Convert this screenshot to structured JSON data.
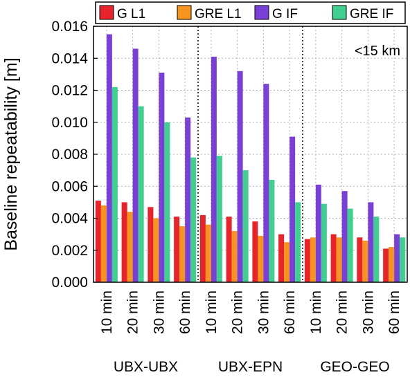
{
  "chart_data": {
    "type": "bar",
    "ylabel": "Baseline repeatability [m]",
    "annotation": "<15 km",
    "ylim": [
      0,
      0.016
    ],
    "yticks": [
      "0.000",
      "0.002",
      "0.004",
      "0.006",
      "0.008",
      "0.010",
      "0.012",
      "0.014",
      "0.016"
    ],
    "grid": true,
    "legend_position": "top",
    "groups": [
      "UBX-UBX",
      "UBX-EPN",
      "GEO-GEO"
    ],
    "categories": [
      "10 min",
      "20 min",
      "30 min",
      "60 min",
      "10 min",
      "20 min",
      "30 min",
      "60 min",
      "10 min",
      "20 min",
      "30 min",
      "60 min"
    ],
    "series": [
      {
        "name": "G L1",
        "color": "#e8232a",
        "values": [
          0.0051,
          0.005,
          0.0047,
          0.0041,
          0.0042,
          0.0041,
          0.0038,
          0.003,
          0.0027,
          0.003,
          0.0028,
          0.0021
        ]
      },
      {
        "name": "GRE L1",
        "color": "#f7941d",
        "values": [
          0.0048,
          0.0044,
          0.004,
          0.0035,
          0.0036,
          0.0032,
          0.0029,
          0.0025,
          0.0028,
          0.0028,
          0.0026,
          0.0022
        ]
      },
      {
        "name": "G IF",
        "color": "#7b3fd9",
        "values": [
          0.0155,
          0.0146,
          0.0131,
          0.0103,
          0.0141,
          0.0132,
          0.0124,
          0.0091,
          0.0061,
          0.0057,
          0.005,
          0.003
        ]
      },
      {
        "name": "GRE IF",
        "color": "#3fcf8e",
        "values": [
          0.0122,
          0.011,
          0.01,
          0.0078,
          0.0079,
          0.007,
          0.0064,
          0.005,
          0.0049,
          0.0046,
          0.0041,
          0.0028
        ]
      }
    ]
  }
}
